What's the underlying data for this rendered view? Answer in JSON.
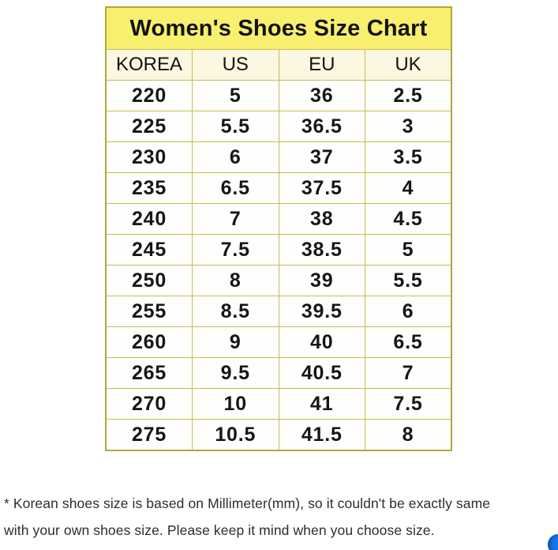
{
  "colors": {
    "title_background": "#f8ef6f",
    "header_background": "#fbf7e1",
    "cell_background": "#fefefc",
    "grid_border": "#c9bc4a",
    "outer_border": "#b2a73d",
    "text": "#161616",
    "footnote_text": "#2d2d2d",
    "chat_button_blue": "#1476e9"
  },
  "chart_data": {
    "type": "table",
    "title": "Women's Shoes Size Chart",
    "columns": [
      "KOREA",
      "US",
      "EU",
      "UK"
    ],
    "rows": [
      [
        "220",
        "5",
        "36",
        "2.5"
      ],
      [
        "225",
        "5.5",
        "36.5",
        "3"
      ],
      [
        "230",
        "6",
        "37",
        "3.5"
      ],
      [
        "235",
        "6.5",
        "37.5",
        "4"
      ],
      [
        "240",
        "7",
        "38",
        "4.5"
      ],
      [
        "245",
        "7.5",
        "38.5",
        "5"
      ],
      [
        "250",
        "8",
        "39",
        "5.5"
      ],
      [
        "255",
        "8.5",
        "39.5",
        "6"
      ],
      [
        "260",
        "9",
        "40",
        "6.5"
      ],
      [
        "265",
        "9.5",
        "40.5",
        "7"
      ],
      [
        "270",
        "10",
        "41",
        "7.5"
      ],
      [
        "275",
        "10.5",
        "41.5",
        "8"
      ]
    ],
    "layout": {
      "grid": true,
      "title_position": "top",
      "unit_note": "KOREA sizes in millimeters"
    }
  },
  "footnote": {
    "line1": "* Korean shoes size is based on Millimeter(mm), so it couldn't be exactly same",
    "line2": "with your own shoes size. Please keep it mind when you choose size."
  }
}
